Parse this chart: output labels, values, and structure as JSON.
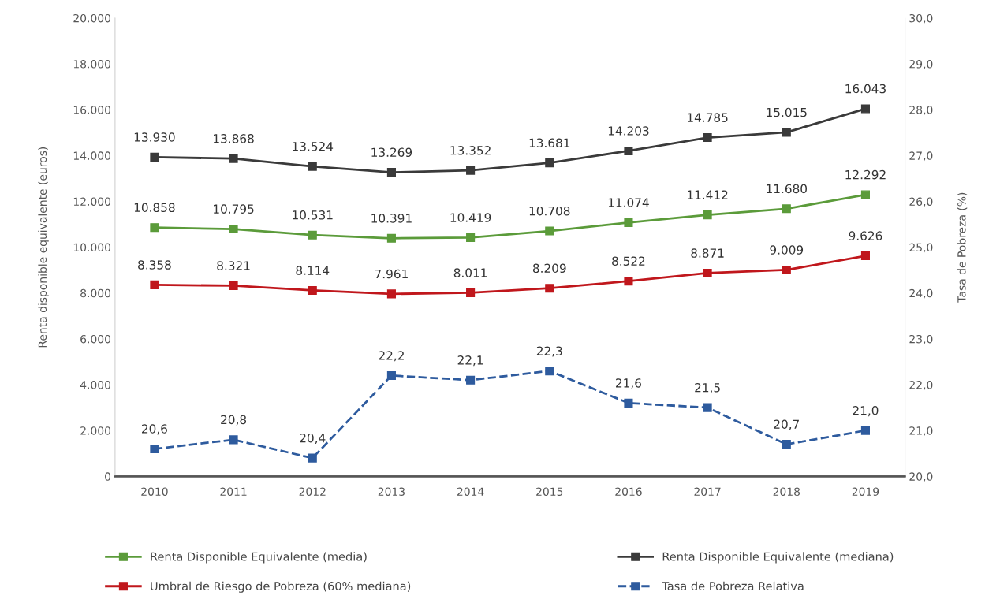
{
  "chart_data": {
    "type": "line",
    "categories": [
      "2010",
      "2011",
      "2012",
      "2013",
      "2014",
      "2015",
      "2016",
      "2017",
      "2018",
      "2019"
    ],
    "ylabel": "Renta disponible equivalente (euros)",
    "y2label": "Tasa de Pobreza (%)",
    "ylim": [
      0,
      20000
    ],
    "yticks": [
      {
        "value": 0,
        "label": "0"
      },
      {
        "value": 2000,
        "label": "2.000"
      },
      {
        "value": 4000,
        "label": "4.000"
      },
      {
        "value": 6000,
        "label": "6.000"
      },
      {
        "value": 8000,
        "label": "8.000"
      },
      {
        "value": 10000,
        "label": "10.000"
      },
      {
        "value": 12000,
        "label": "12.000"
      },
      {
        "value": 14000,
        "label": "14.000"
      },
      {
        "value": 16000,
        "label": "16.000"
      },
      {
        "value": 18000,
        "label": "18.000"
      },
      {
        "value": 20000,
        "label": "20.000"
      }
    ],
    "y2lim": [
      20,
      30
    ],
    "y2ticks": [
      {
        "value": 20,
        "label": "20,0"
      },
      {
        "value": 21,
        "label": "21,0"
      },
      {
        "value": 22,
        "label": "22,0"
      },
      {
        "value": 23,
        "label": "23,0"
      },
      {
        "value": 24,
        "label": "24,0"
      },
      {
        "value": 25,
        "label": "25,0"
      },
      {
        "value": 26,
        "label": "26,0"
      },
      {
        "value": 27,
        "label": "27,0"
      },
      {
        "value": 28,
        "label": "28,0"
      },
      {
        "value": 29,
        "label": "29,0"
      },
      {
        "value": 30,
        "label": "30,0"
      }
    ],
    "marker": "square",
    "grid": false,
    "legend": "bottom",
    "series": [
      {
        "name": "Renta Disponible Equivalente (media)",
        "color": "#5b9b3a",
        "values": [
          10858,
          10795,
          10531,
          10391,
          10419,
          10708,
          11074,
          11412,
          11680,
          12292
        ],
        "value_labels": [
          "10.858",
          "10.795",
          "10.531",
          "10.391",
          "10.419",
          "10.708",
          "11.074",
          "11.412",
          "11.680",
          "12.292"
        ]
      },
      {
        "name": "Renta Disponible Equivalente (mediana)",
        "color": "#3a3a3a",
        "values": [
          13930,
          13868,
          13524,
          13269,
          13352,
          13681,
          14203,
          14785,
          15015,
          16043
        ],
        "value_labels": [
          "13.930",
          "13.868",
          "13.524",
          "13.269",
          "13.352",
          "13.681",
          "14.203",
          "14.785",
          "15.015",
          "16.043"
        ]
      },
      {
        "name": "Umbral de Riesgo de Pobreza (60% mediana)",
        "color": "#c0171c",
        "values": [
          8358,
          8321,
          8114,
          7961,
          8011,
          8209,
          8522,
          8871,
          9009,
          9626
        ],
        "value_labels": [
          "8.358",
          "8.321",
          "8.114",
          "7.961",
          "8.011",
          "8.209",
          "8.522",
          "8.871",
          "9.009",
          "9.626"
        ]
      },
      {
        "name": "Tasa de Pobreza Relativa",
        "color": "#2e5b9e",
        "axis": "y2",
        "line_style": "dashed",
        "values": [
          20.6,
          20.8,
          20.4,
          22.2,
          22.1,
          22.3,
          21.6,
          21.5,
          20.7,
          21.0
        ],
        "value_labels": [
          "20,6",
          "20,8",
          "20,4",
          "22,2",
          "22,1",
          "22,3",
          "21,6",
          "21,5",
          "20,7",
          "21,0"
        ]
      }
    ]
  }
}
